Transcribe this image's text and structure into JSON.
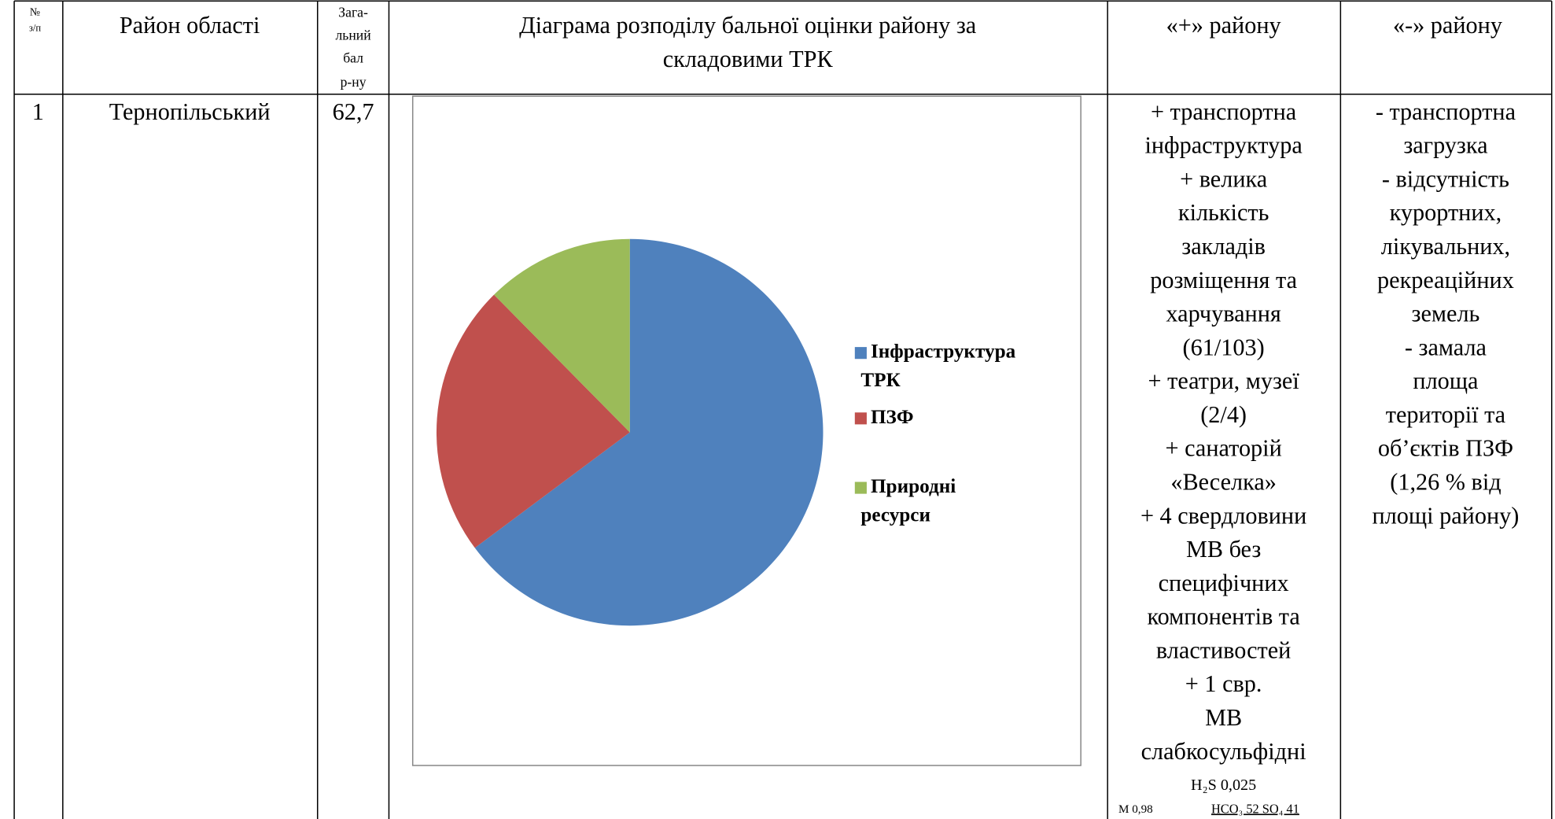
{
  "table": {
    "header": [
      {
        "lines": [
          "№",
          "з/п"
        ]
      },
      {
        "lines": [
          "Район області"
        ]
      },
      {
        "lines": [
          "Зага-",
          "льний",
          "бал",
          "р-ну"
        ]
      },
      {
        "lines": [
          "Діаграма розподілу бальної оцінки району за",
          "складовими ТРК"
        ]
      },
      {
        "lines": [
          "«+» району"
        ]
      },
      {
        "lines": [
          "«-» району"
        ]
      }
    ],
    "rows": [
      {
        "number": "1",
        "district": "Тернопільський",
        "score": "62,7",
        "pros": [
          "+ транспортна",
          "інфраструктура",
          "+ велика",
          "кількість",
          "закладів",
          "розміщення та",
          "харчування",
          "(61/103)",
          "+ театри, музеї",
          "(2/4)",
          "+ санаторій",
          "«Веселка»",
          "+ 4 свердловини",
          "МВ без",
          "специфічних",
          "компонентів та",
          "властивостей",
          "+ 1 свр.",
          "МВ",
          "слабкосульфідні"
        ],
        "formula": [
          "H₂S 0,025",
          "M 0,98",
          "HCO₃ 52 SO₄ 41"
        ],
        "cons": [
          "- транспортна",
          "загрузка",
          "- відсутність",
          "курортних,",
          "лікувальних,",
          "рекреаційних",
          "земель",
          "- замала",
          "площа",
          "території та",
          "об’єктів ПЗФ",
          "(1,26 % від",
          "площі району)"
        ]
      }
    ]
  },
  "chart_data": {
    "type": "pie",
    "categories": [
      "Інфраструктура ТРК",
      "ПЗФ",
      "Природні ресурси"
    ],
    "values": [
      64.8,
      22.8,
      12.4
    ],
    "colors": [
      "#4f81bd",
      "#c0504d",
      "#9bbb59"
    ],
    "legend": "right"
  }
}
